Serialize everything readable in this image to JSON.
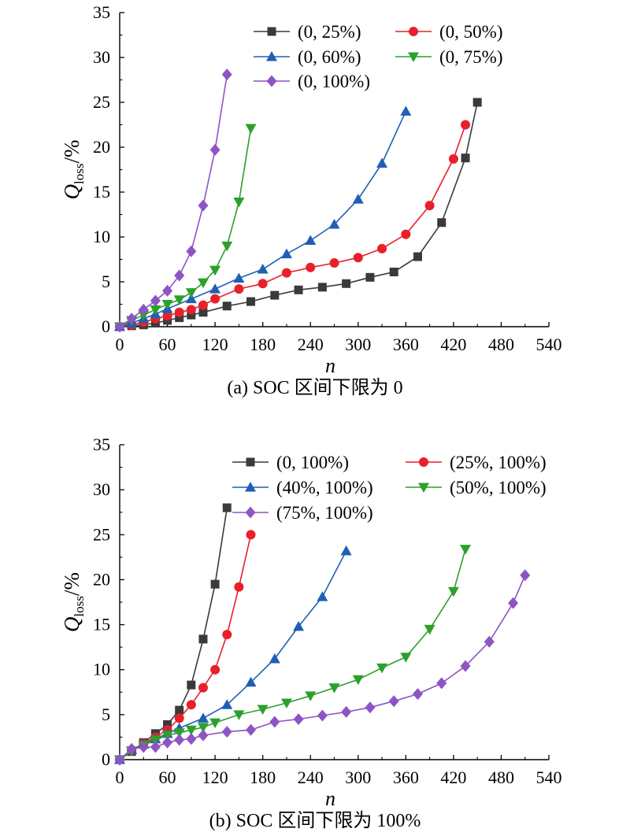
{
  "chart_data": [
    {
      "type": "line",
      "caption": "(a) SOC 区间下限为 0",
      "xlabel": "n",
      "ylabel": "Q",
      "ylabel_sub": "loss",
      "ylabel_suffix": "/%",
      "xlim": [
        0,
        540
      ],
      "ylim": [
        0,
        35
      ],
      "xticks": [
        "0",
        "60",
        "120",
        "180",
        "240",
        "300",
        "360",
        "420",
        "480",
        "540"
      ],
      "yticks": [
        "0",
        "5",
        "10",
        "15",
        "20",
        "25",
        "30",
        "35"
      ],
      "grid": false,
      "legend_position": "top",
      "series": [
        {
          "name": "(0, 25%)",
          "color": "#3a3a3a",
          "marker": "square",
          "points": [
            [
              0,
              0
            ],
            [
              15,
              0.1
            ],
            [
              30,
              0.2
            ],
            [
              45,
              0.4
            ],
            [
              60,
              0.7
            ],
            [
              75,
              1.0
            ],
            [
              90,
              1.3
            ],
            [
              105,
              1.6
            ],
            [
              135,
              2.3
            ],
            [
              165,
              2.8
            ],
            [
              195,
              3.5
            ],
            [
              225,
              4.1
            ],
            [
              255,
              4.4
            ],
            [
              285,
              4.8
            ],
            [
              315,
              5.5
            ],
            [
              345,
              6.1
            ],
            [
              375,
              7.8
            ],
            [
              405,
              11.6
            ],
            [
              435,
              18.8
            ],
            [
              450,
              25.0
            ]
          ]
        },
        {
          "name": "(0, 50%)",
          "color": "#e8202a",
          "marker": "circle",
          "points": [
            [
              0,
              0
            ],
            [
              15,
              0.2
            ],
            [
              30,
              0.5
            ],
            [
              45,
              0.9
            ],
            [
              60,
              1.2
            ],
            [
              75,
              1.6
            ],
            [
              90,
              1.9
            ],
            [
              105,
              2.4
            ],
            [
              120,
              3.1
            ],
            [
              150,
              4.2
            ],
            [
              180,
              4.8
            ],
            [
              210,
              6.0
            ],
            [
              240,
              6.6
            ],
            [
              270,
              7.1
            ],
            [
              300,
              7.7
            ],
            [
              330,
              8.7
            ],
            [
              360,
              10.3
            ],
            [
              390,
              13.5
            ],
            [
              420,
              18.7
            ],
            [
              435,
              22.5
            ]
          ]
        },
        {
          "name": "(0, 60%)",
          "color": "#1f5fb4",
          "marker": "triangle-up",
          "points": [
            [
              0,
              0
            ],
            [
              15,
              0.4
            ],
            [
              30,
              0.9
            ],
            [
              45,
              1.4
            ],
            [
              60,
              2.0
            ],
            [
              90,
              3.1
            ],
            [
              120,
              4.2
            ],
            [
              150,
              5.4
            ],
            [
              180,
              6.4
            ],
            [
              210,
              8.1
            ],
            [
              240,
              9.6
            ],
            [
              270,
              11.4
            ],
            [
              300,
              14.2
            ],
            [
              330,
              18.2
            ],
            [
              360,
              24.0
            ]
          ]
        },
        {
          "name": "(0, 75%)",
          "color": "#2ca02c",
          "marker": "triangle-down",
          "points": [
            [
              0,
              0
            ],
            [
              15,
              0.7
            ],
            [
              30,
              1.3
            ],
            [
              45,
              1.9
            ],
            [
              60,
              2.5
            ],
            [
              75,
              3.0
            ],
            [
              90,
              3.8
            ],
            [
              105,
              4.9
            ],
            [
              120,
              6.3
            ],
            [
              135,
              9.0
            ],
            [
              150,
              13.9
            ],
            [
              165,
              22.1
            ]
          ]
        },
        {
          "name": "(0, 100%)",
          "color": "#8e54c4",
          "marker": "diamond",
          "points": [
            [
              0,
              0
            ],
            [
              15,
              0.9
            ],
            [
              30,
              1.9
            ],
            [
              45,
              2.9
            ],
            [
              60,
              4.0
            ],
            [
              75,
              5.7
            ],
            [
              90,
              8.4
            ],
            [
              105,
              13.5
            ],
            [
              120,
              19.7
            ],
            [
              135,
              28.1
            ]
          ]
        }
      ]
    },
    {
      "type": "line",
      "caption": "(b) SOC 区间下限为 100%",
      "xlabel": "n",
      "ylabel": "Q",
      "ylabel_sub": "loss",
      "ylabel_suffix": "/%",
      "xlim": [
        0,
        540
      ],
      "ylim": [
        0,
        35
      ],
      "xticks": [
        "0",
        "60",
        "120",
        "180",
        "240",
        "300",
        "360",
        "420",
        "480",
        "540"
      ],
      "yticks": [
        "0",
        "5",
        "10",
        "15",
        "20",
        "25",
        "30",
        "35"
      ],
      "grid": false,
      "legend_position": "top",
      "series": [
        {
          "name": "(0, 100%)",
          "color": "#3a3a3a",
          "marker": "square",
          "points": [
            [
              0,
              0
            ],
            [
              15,
              0.9
            ],
            [
              30,
              1.9
            ],
            [
              45,
              2.9
            ],
            [
              60,
              3.9
            ],
            [
              75,
              5.5
            ],
            [
              90,
              8.3
            ],
            [
              105,
              13.4
            ],
            [
              120,
              19.5
            ],
            [
              135,
              28.0
            ]
          ]
        },
        {
          "name": "(25%, 100%)",
          "color": "#e8202a",
          "marker": "circle",
          "points": [
            [
              0,
              0
            ],
            [
              15,
              1.0
            ],
            [
              30,
              1.8
            ],
            [
              45,
              2.5
            ],
            [
              60,
              3.3
            ],
            [
              75,
              4.6
            ],
            [
              90,
              6.1
            ],
            [
              105,
              8.0
            ],
            [
              120,
              10.0
            ],
            [
              135,
              13.9
            ],
            [
              150,
              19.2
            ],
            [
              165,
              25.0
            ]
          ]
        },
        {
          "name": "(40%, 100%)",
          "color": "#1f5fb4",
          "marker": "triangle-up",
          "points": [
            [
              0,
              0
            ],
            [
              15,
              1.1
            ],
            [
              30,
              1.7
            ],
            [
              45,
              2.3
            ],
            [
              60,
              2.9
            ],
            [
              75,
              3.5
            ],
            [
              105,
              4.6
            ],
            [
              135,
              6.1
            ],
            [
              165,
              8.6
            ],
            [
              195,
              11.2
            ],
            [
              225,
              14.8
            ],
            [
              255,
              18.1
            ],
            [
              285,
              23.2
            ]
          ]
        },
        {
          "name": "(50%, 100%)",
          "color": "#2ca02c",
          "marker": "triangle-down",
          "points": [
            [
              0,
              0
            ],
            [
              15,
              1.0
            ],
            [
              30,
              1.6
            ],
            [
              45,
              2.2
            ],
            [
              60,
              2.7
            ],
            [
              75,
              3.0
            ],
            [
              90,
              3.3
            ],
            [
              105,
              3.6
            ],
            [
              120,
              4.1
            ],
            [
              150,
              5.0
            ],
            [
              180,
              5.6
            ],
            [
              210,
              6.3
            ],
            [
              240,
              7.1
            ],
            [
              270,
              8.0
            ],
            [
              300,
              8.9
            ],
            [
              330,
              10.2
            ],
            [
              360,
              11.4
            ],
            [
              390,
              14.5
            ],
            [
              420,
              18.7
            ],
            [
              435,
              23.4
            ]
          ]
        },
        {
          "name": "(75%, 100%)",
          "color": "#8e54c4",
          "marker": "diamond",
          "points": [
            [
              0,
              0
            ],
            [
              15,
              1.2
            ],
            [
              30,
              1.4
            ],
            [
              45,
              1.4
            ],
            [
              60,
              1.9
            ],
            [
              75,
              2.2
            ],
            [
              90,
              2.3
            ],
            [
              105,
              2.7
            ],
            [
              135,
              3.1
            ],
            [
              165,
              3.3
            ],
            [
              195,
              4.2
            ],
            [
              225,
              4.5
            ],
            [
              255,
              4.9
            ],
            [
              285,
              5.3
            ],
            [
              315,
              5.8
            ],
            [
              345,
              6.5
            ],
            [
              375,
              7.3
            ],
            [
              405,
              8.5
            ],
            [
              435,
              10.4
            ],
            [
              465,
              13.1
            ],
            [
              495,
              17.4
            ],
            [
              510,
              20.5
            ]
          ]
        }
      ]
    }
  ]
}
